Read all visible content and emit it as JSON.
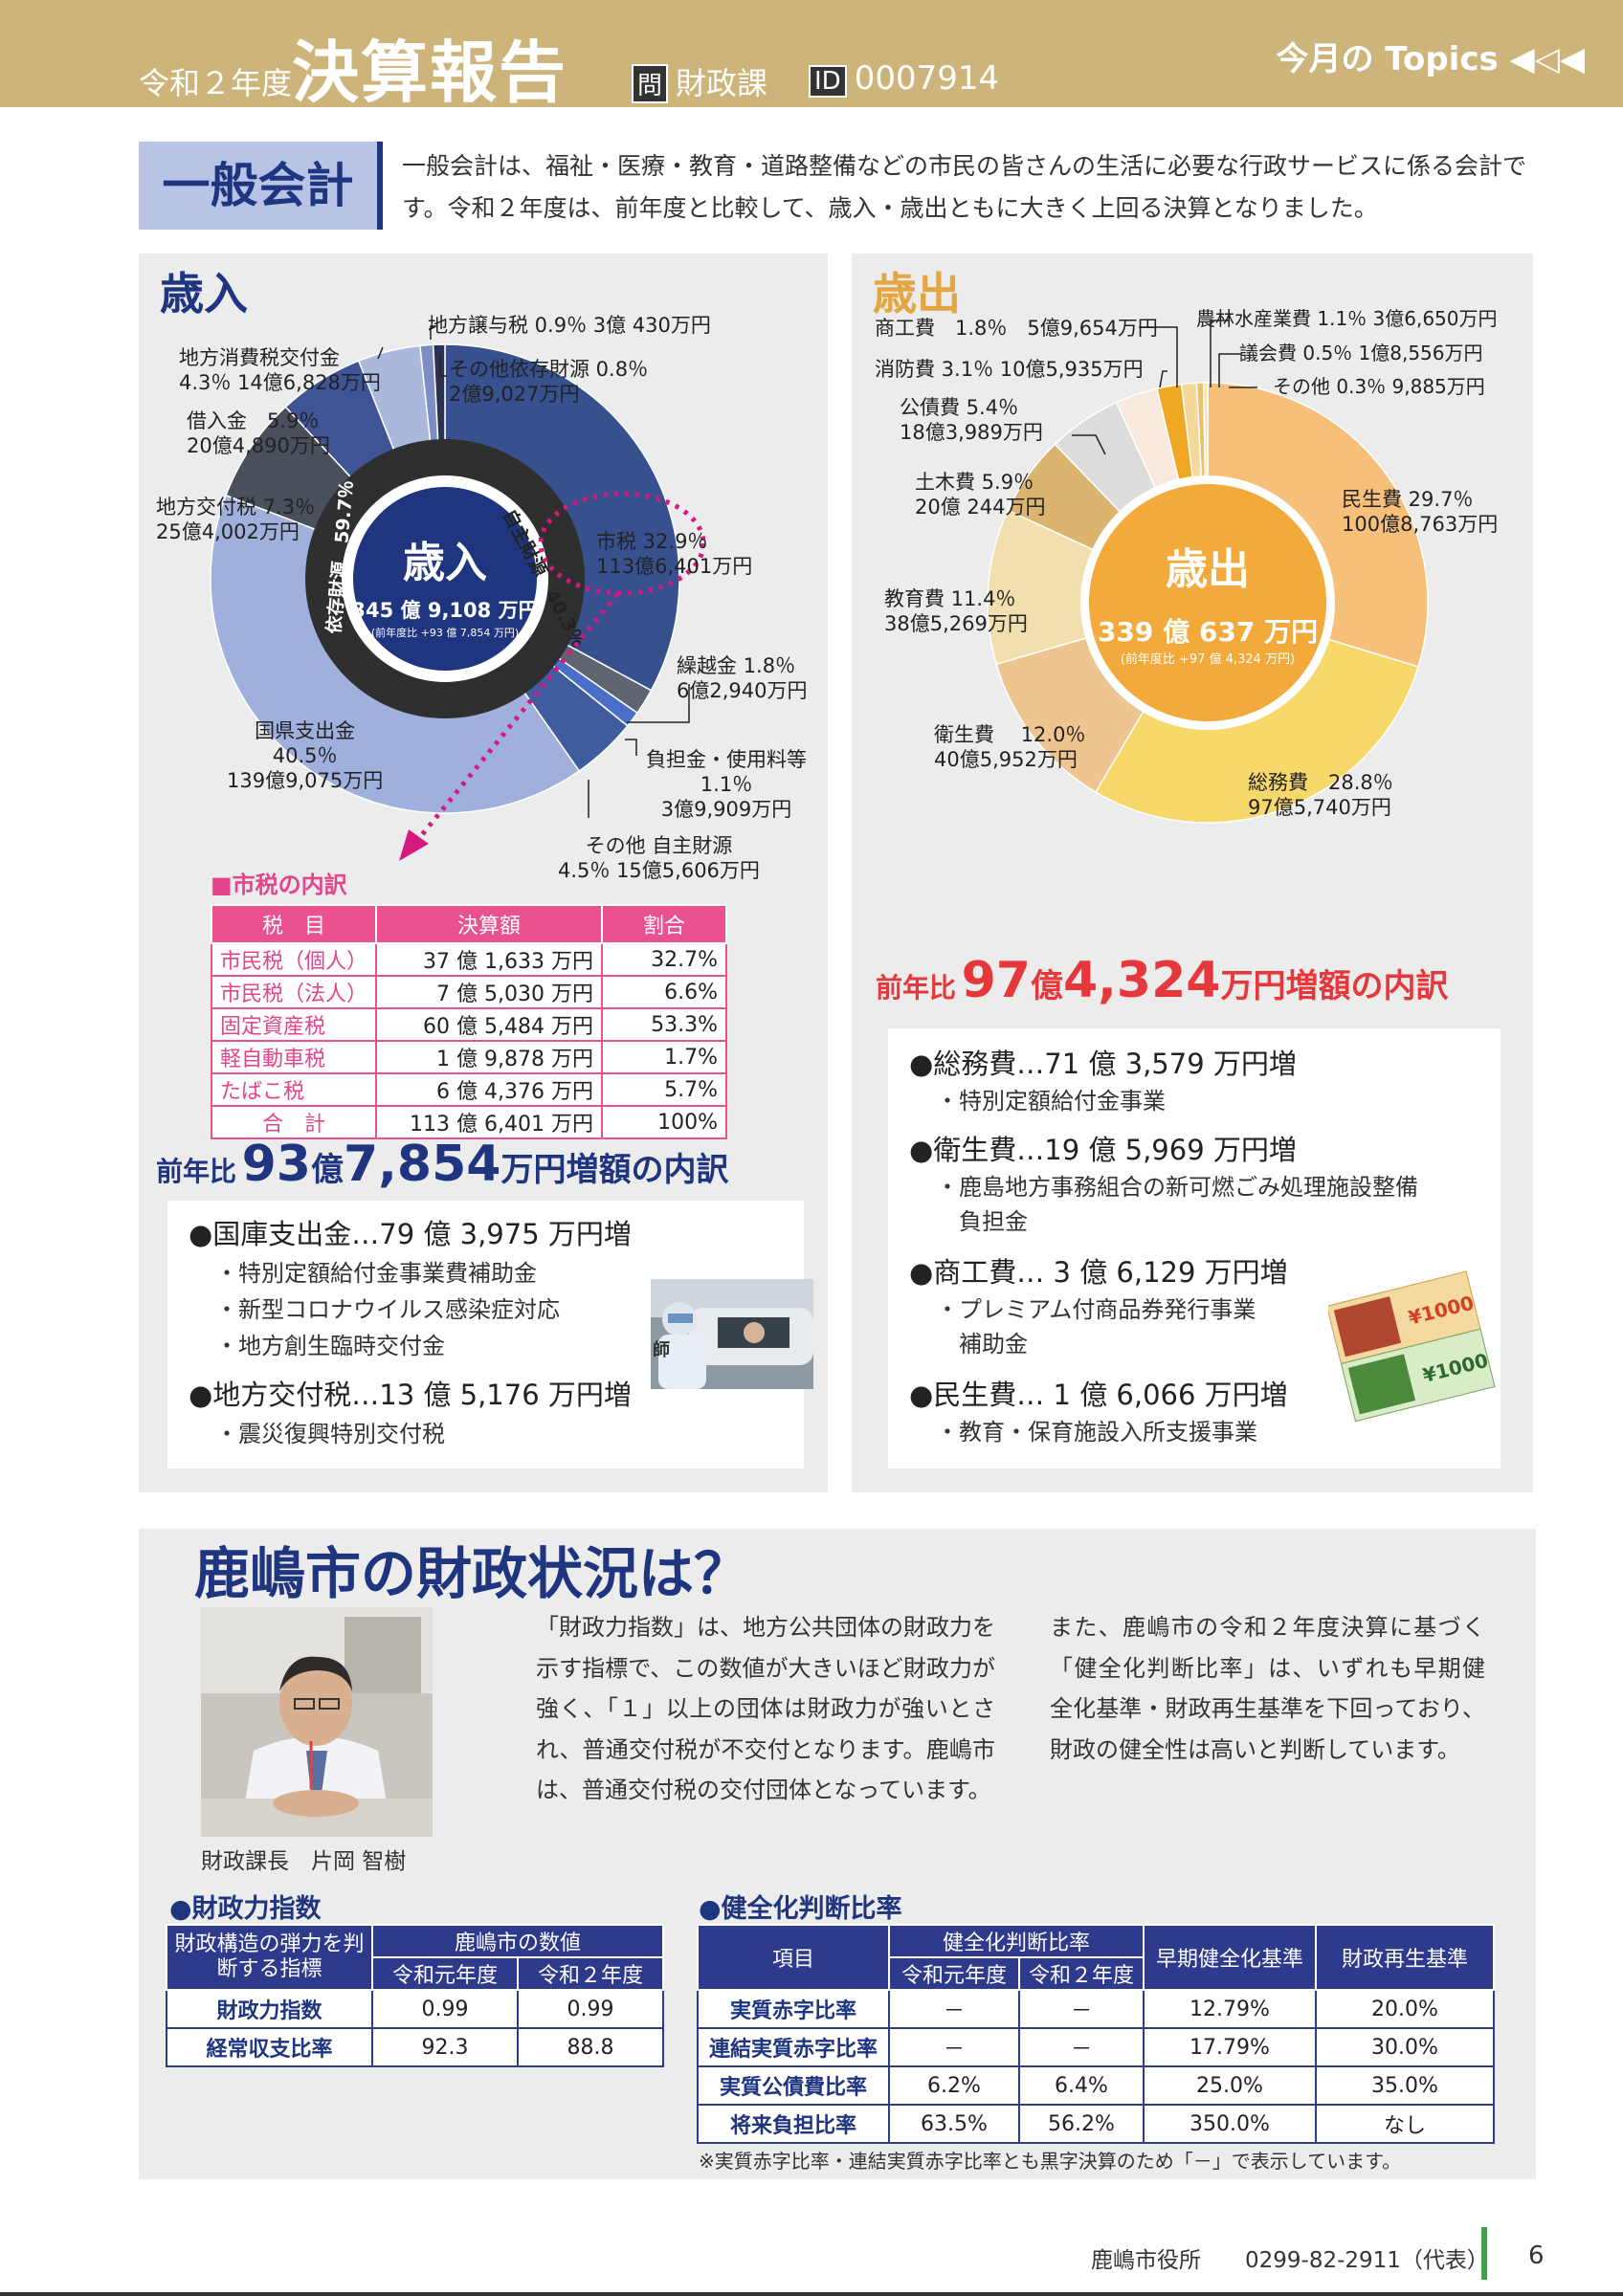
{
  "header": {
    "era": "令和２年度",
    "title": "決算報告",
    "dept_box": "問",
    "dept": "財政課",
    "id_box": "ID",
    "id": "0007914",
    "topics": "今月の Topics ◀◁◀"
  },
  "general": {
    "label": "一般会計",
    "desc": "一般会計は、福祉・医療・教育・道路整備などの市民の皆さんの生活に必要な行政サービスに係る会計です。令和２年度は、前年度と比較して、歳入・歳出ともに大きく上回る決算となりました。"
  },
  "revenue": {
    "title": "歳入",
    "center_title": "歳入",
    "center_total": "345 億 9,108 万円",
    "center_sub": "(前年度比 +93 億 7,854 万円)",
    "ring_own": "自主財源　40.3％",
    "ring_dep": "依存財源　59.7％",
    "labels": {
      "city_tax": "市税 32.9％",
      "city_tax_amt": "113億6,401万円",
      "carry": "繰越金 1.8％",
      "carry_amt": "6億2,940万円",
      "fee": "負担金・使用料等",
      "fee_pct": "1.1％",
      "fee_amt": "3億9,909万円",
      "other_own": "その他 自主財源",
      "other_own_amt": "4.5％ 15億5,606万円",
      "national": "国県支出金",
      "national_pct": "40.5％",
      "national_amt": "139億9,075万円",
      "local_grant": "地方交付税 7.3％",
      "local_grant_amt": "25億4,002万円",
      "loan": "借入金　5.9％",
      "loan_amt": "20億4,890万円",
      "consume": "地方消費税交付金",
      "consume_amt": "4.3％ 14億6,828万円",
      "transfer": "地方譲与税 0.9％ 3億 430万円",
      "other_dep": "その他依存財源 0.8％",
      "other_dep_amt": "2億9,027万円"
    },
    "tax_table": {
      "heading": "■市税の内訳",
      "headers": [
        "税　目",
        "決算額",
        "割合"
      ],
      "rows": [
        [
          "市民税（個人）",
          "37 億 1,633 万円",
          "32.7%"
        ],
        [
          "市民税（法人）",
          "7 億 5,030 万円",
          "6.6%"
        ],
        [
          "固定資産税",
          "60 億 5,484 万円",
          "53.3%"
        ],
        [
          "軽自動車税",
          "1 億 9,878 万円",
          "1.7%"
        ],
        [
          "たばこ税",
          "6 億 4,376 万円",
          "5.7%"
        ],
        [
          "合　計",
          "113 億 6,401 万円",
          "100%"
        ]
      ]
    },
    "increase": {
      "pre": "前年比",
      "num1": "93",
      "unit1": "億",
      "num2": "7,854",
      "unit2": "万円",
      "post": "増額の内訳",
      "items": [
        {
          "head": "●国庫支出金…79 億 3,975 万円増",
          "subs": [
            "・特別定額給付金事業費補助金",
            "・新型コロナウイルス感染症対応",
            "・地方創生臨時交付金"
          ]
        },
        {
          "head": "●地方交付税…13 億 5,176 万円増",
          "subs": [
            "・震災復興特別交付税"
          ]
        }
      ]
    }
  },
  "expenditure": {
    "title": "歳出",
    "center_title": "歳出",
    "center_total": "339 億 637 万円",
    "center_sub": "(前年度比 +97 億 4,324 万円)",
    "labels": {
      "welfare": "民生費 29.7％",
      "welfare_amt": "100億8,763万円",
      "general": "総務費　28.8％",
      "general_amt": "97億5,740万円",
      "health": "衛生費　 12.0％",
      "health_amt": "40億5,952万円",
      "edu": "教育費 11.4％",
      "edu_amt": "38億5,269万円",
      "civil": "土木費 5.9％",
      "civil_amt": "20億 244万円",
      "debt": "公債費 5.4％",
      "debt_amt": "18億3,989万円",
      "fire": "消防費 3.1％ 10億5,935万円",
      "commerce": "商工費　1.8％　5億9,654万円",
      "agri": "農林水産業費 1.1％ 3億6,650万円",
      "council": "議会費 0.5％ 1億8,556万円",
      "other": "その他 0.3％ 9,885万円"
    },
    "increase": {
      "pre": "前年比",
      "num1": "97",
      "unit1": "億",
      "num2": "4,324",
      "unit2": "万円",
      "post": "増額の内訳",
      "items": [
        {
          "head": "●総務費…71 億 3,579 万円増",
          "subs": [
            "・特別定額給付金事業"
          ]
        },
        {
          "head": "●衛生費…19 億 5,969 万円増",
          "subs": [
            "・鹿島地方事務組合の新可燃ごみ処理施設整備",
            "　負担金"
          ]
        },
        {
          "head": "●商工費… 3 億 6,129 万円増",
          "subs": [
            "・プレミアム付商品券発行事業",
            "　補助金"
          ]
        },
        {
          "head": "●民生費… 1 億 6,066 万円増",
          "subs": [
            "・教育・保育施設入所支援事業"
          ]
        }
      ]
    }
  },
  "chart_data": [
    {
      "type": "pie",
      "title": "歳入",
      "total": "345 億 9,108 万円",
      "categories": [
        "市税",
        "繰越金",
        "負担金・使用料等",
        "その他 自主財源",
        "国県支出金",
        "地方交付税",
        "借入金",
        "地方消費税交付金",
        "地方譲与税",
        "その他依存財源"
      ],
      "values": [
        32.9,
        1.8,
        1.1,
        4.5,
        40.5,
        7.3,
        5.9,
        4.3,
        0.9,
        0.8
      ],
      "colors": [
        "#37518f",
        "#5f6570",
        "#4b6fc8",
        "#3f5c9e",
        "#9fb0dc",
        "#4a4f5c",
        "#3f5496",
        "#a9b8dc",
        "#7c8ec5",
        "#2c3250"
      ]
    },
    {
      "type": "pie",
      "title": "歳出",
      "total": "339 億 637 万円",
      "categories": [
        "民生費",
        "総務費",
        "衛生費",
        "教育費",
        "土木費",
        "公債費",
        "消防費",
        "商工費",
        "農林水産業費",
        "議会費",
        "その他"
      ],
      "values": [
        29.7,
        28.8,
        12.0,
        11.4,
        5.9,
        5.4,
        3.1,
        1.8,
        1.1,
        0.5,
        0.3
      ],
      "colors": [
        "#f6c07b",
        "#f7d86a",
        "#eec490",
        "#f1dfae",
        "#dbb46f",
        "#dcdcdc",
        "#f9e8dc",
        "#f0a824",
        "#f6d89b",
        "#e8c26d",
        "#f7e3b8"
      ]
    }
  ],
  "finance": {
    "title": "鹿嶋市の財政状況は？",
    "caption": "財政課長　片岡 智樹",
    "para1": "「財政力指数」は、地方公共団体の財政力を示す指標で、この数値が大きいほど財政力が強く、「１」以上の団体は財政力が強いとされ、普通交付税が不交付となります。鹿嶋市は、普通交付税の交付団体となっています。",
    "para2": "また、鹿嶋市の令和２年度決算に基づく「健全化判断比率」は、いずれも早期健全化基準・財政再生基準を下回っており、財政の健全性は高いと判断しています。",
    "t1": {
      "heading": "●財政力指数",
      "h_left": "財政構造の弾力を判断する指標",
      "h_group": "鹿嶋市の数値",
      "h_y1": "令和元年度",
      "h_y2": "令和２年度",
      "rows": [
        [
          "財政力指数",
          "0.99",
          "0.99"
        ],
        [
          "経常収支比率",
          "92.3",
          "88.8"
        ]
      ]
    },
    "t2": {
      "heading": "●健全化判断比率",
      "h_item": "項目",
      "h_group": "健全化判断比率",
      "h_y1": "令和元年度",
      "h_y2": "令和２年度",
      "h_early": "早期健全化基準",
      "h_rebuild": "財政再生基準",
      "rows": [
        [
          "実質赤字比率",
          "－",
          "－",
          "12.79%",
          "20.0%"
        ],
        [
          "連結実質赤字比率",
          "－",
          "－",
          "17.79%",
          "30.0%"
        ],
        [
          "実質公債費比率",
          "6.2%",
          "6.4%",
          "25.0%",
          "35.0%"
        ],
        [
          "将来負担比率",
          "63.5%",
          "56.2%",
          "350.0%",
          "なし"
        ]
      ],
      "note": "※実質赤字比率・連結実質赤字比率とも黒字決算のため「－」で表示しています。"
    }
  },
  "footer": {
    "office": "鹿嶋市役所　　0299-82-2911（代表）",
    "page": "6"
  }
}
